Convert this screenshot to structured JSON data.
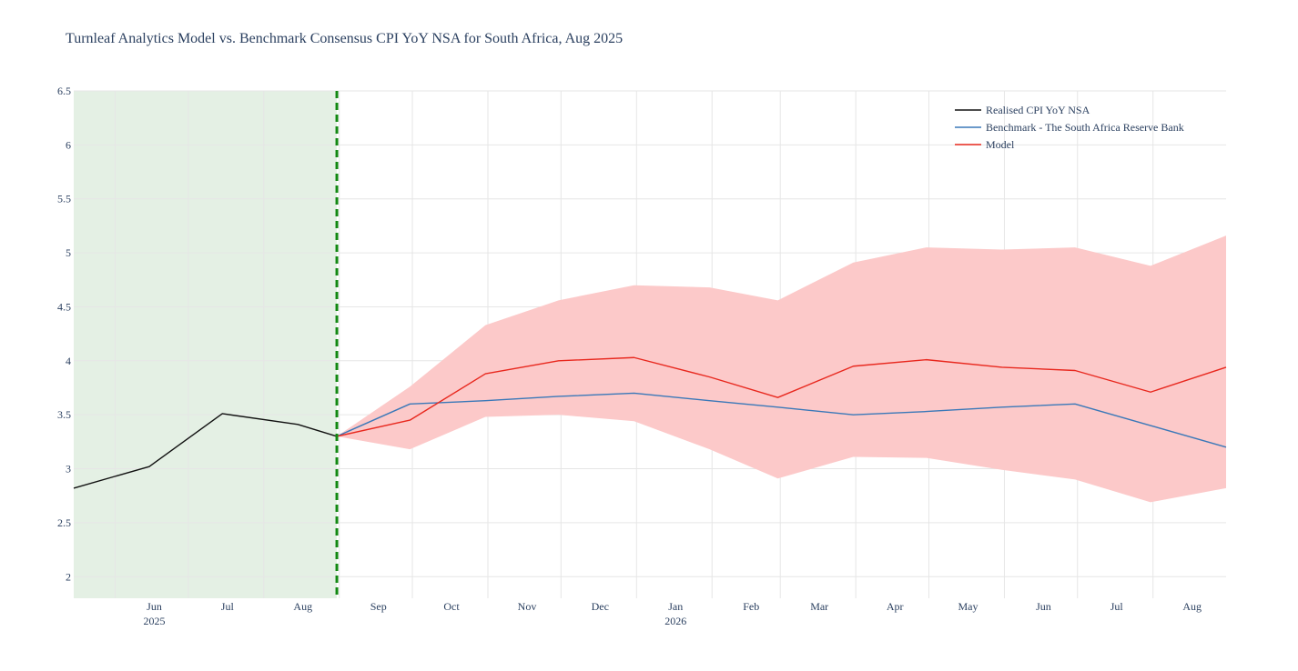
{
  "chart_data": {
    "type": "line",
    "title": "Turnleaf Analytics Model vs. Benchmark Consensus CPI YoY NSA for South Africa, Aug 2025",
    "xlabel": "",
    "ylabel": "",
    "ylim": [
      1.8,
      6.5
    ],
    "xlim": [
      "2025-05-15",
      "2026-08-31"
    ],
    "grid": true,
    "legend_position": "top-right",
    "y_ticks": [
      2,
      2.5,
      3,
      3.5,
      4,
      4.5,
      5,
      5.5,
      6,
      6.5
    ],
    "y_tick_labels": [
      "2",
      "2.5",
      "3",
      "3.5",
      "4",
      "4.5",
      "5",
      "5.5",
      "6",
      "6.5"
    ],
    "x_ticks": [
      {
        "date": "2025-06-01",
        "label": "Jun",
        "year": "2025"
      },
      {
        "date": "2025-07-01",
        "label": "Jul",
        "year": ""
      },
      {
        "date": "2025-08-01",
        "label": "Aug",
        "year": ""
      },
      {
        "date": "2025-09-01",
        "label": "Sep",
        "year": ""
      },
      {
        "date": "2025-10-01",
        "label": "Oct",
        "year": ""
      },
      {
        "date": "2025-11-01",
        "label": "Nov",
        "year": ""
      },
      {
        "date": "2025-12-01",
        "label": "Dec",
        "year": ""
      },
      {
        "date": "2026-01-01",
        "label": "Jan",
        "year": "2026"
      },
      {
        "date": "2026-02-01",
        "label": "Feb",
        "year": ""
      },
      {
        "date": "2026-03-01",
        "label": "Mar",
        "year": ""
      },
      {
        "date": "2026-04-01",
        "label": "Apr",
        "year": ""
      },
      {
        "date": "2026-05-01",
        "label": "May",
        "year": ""
      },
      {
        "date": "2026-06-01",
        "label": "Jun",
        "year": ""
      },
      {
        "date": "2026-07-01",
        "label": "Jul",
        "year": ""
      },
      {
        "date": "2026-08-01",
        "label": "Aug",
        "year": ""
      }
    ],
    "shaded_region": {
      "start": "2025-05-15",
      "end": "2025-08-31",
      "color": "#e4f0e4"
    },
    "forecast_marker": {
      "date": "2025-08-31",
      "color": "#118811",
      "style": "dashed"
    },
    "series": [
      {
        "name": "Realised CPI YoY NSA",
        "color": "#111111",
        "x": [
          "2025-05-15",
          "2025-06-15",
          "2025-07-15",
          "2025-08-15",
          "2025-08-31"
        ],
        "values": [
          2.82,
          3.02,
          3.51,
          3.41,
          3.3
        ]
      },
      {
        "name": "Benchmark - The South Africa Reserve Bank",
        "color": "#3a78b8",
        "x": [
          "2025-08-31",
          "2025-09-30",
          "2025-10-31",
          "2025-11-30",
          "2025-12-31",
          "2026-01-31",
          "2026-02-28",
          "2026-03-31",
          "2026-04-30",
          "2026-05-31",
          "2026-06-30",
          "2026-07-31",
          "2026-08-31"
        ],
        "values": [
          3.3,
          3.6,
          3.63,
          3.67,
          3.7,
          3.63,
          3.57,
          3.5,
          3.53,
          3.57,
          3.6,
          3.4,
          3.2
        ]
      },
      {
        "name": "Model",
        "color": "#e8281e",
        "x": [
          "2025-08-31",
          "2025-09-30",
          "2025-10-31",
          "2025-11-30",
          "2025-12-31",
          "2026-01-31",
          "2026-02-28",
          "2026-03-31",
          "2026-04-30",
          "2026-05-31",
          "2026-06-30",
          "2026-07-31",
          "2026-08-31"
        ],
        "values": [
          3.3,
          3.45,
          3.88,
          4.0,
          4.03,
          3.85,
          3.66,
          3.95,
          4.01,
          3.94,
          3.91,
          3.71,
          3.94
        ]
      }
    ],
    "confidence_band": {
      "series": "Model",
      "color": "#fcc9c9",
      "x": [
        "2025-08-31",
        "2025-09-30",
        "2025-10-31",
        "2025-11-30",
        "2025-12-31",
        "2026-01-31",
        "2026-02-28",
        "2026-03-31",
        "2026-04-30",
        "2026-05-31",
        "2026-06-30",
        "2026-07-31",
        "2026-08-31"
      ],
      "upper": [
        3.3,
        3.76,
        4.33,
        4.56,
        4.7,
        4.68,
        4.56,
        4.91,
        5.05,
        5.03,
        5.05,
        4.88,
        5.16
      ],
      "lower": [
        3.3,
        3.18,
        3.48,
        3.5,
        3.44,
        3.18,
        2.91,
        3.11,
        3.1,
        2.99,
        2.9,
        2.69,
        2.82
      ]
    }
  }
}
